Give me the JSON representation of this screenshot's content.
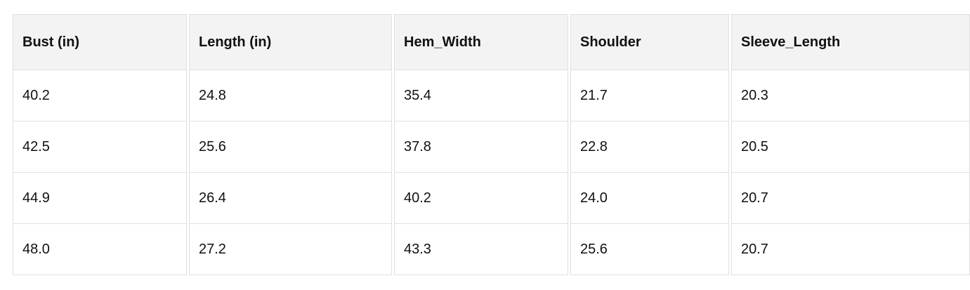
{
  "table": {
    "columns": [
      "Bust (in)",
      "Length (in)",
      "Hem_Width",
      "Shoulder",
      "Sleeve_Length"
    ],
    "rows": [
      [
        "40.2",
        "24.8",
        "35.4",
        "21.7",
        "20.3"
      ],
      [
        "42.5",
        "25.6",
        "37.8",
        "22.8",
        "20.5"
      ],
      [
        "44.9",
        "26.4",
        "40.2",
        "24.0",
        "20.7"
      ],
      [
        "48.0",
        "27.2",
        "43.3",
        "25.6",
        "20.7"
      ]
    ]
  },
  "colors": {
    "header_bg": "#f3f3f3",
    "border": "#e0e0e0",
    "text": "#111111",
    "row_bg": "#ffffff",
    "page_bg": "#ffffff"
  },
  "chart_data": {
    "type": "table",
    "title": "",
    "columns": [
      "Bust (in)",
      "Length (in)",
      "Hem_Width",
      "Shoulder",
      "Sleeve_Length"
    ],
    "rows": [
      [
        40.2,
        24.8,
        35.4,
        21.7,
        20.3
      ],
      [
        42.5,
        25.6,
        37.8,
        22.8,
        20.5
      ],
      [
        44.9,
        26.4,
        40.2,
        24.0,
        20.7
      ],
      [
        48.0,
        27.2,
        43.3,
        25.6,
        20.7
      ]
    ]
  }
}
